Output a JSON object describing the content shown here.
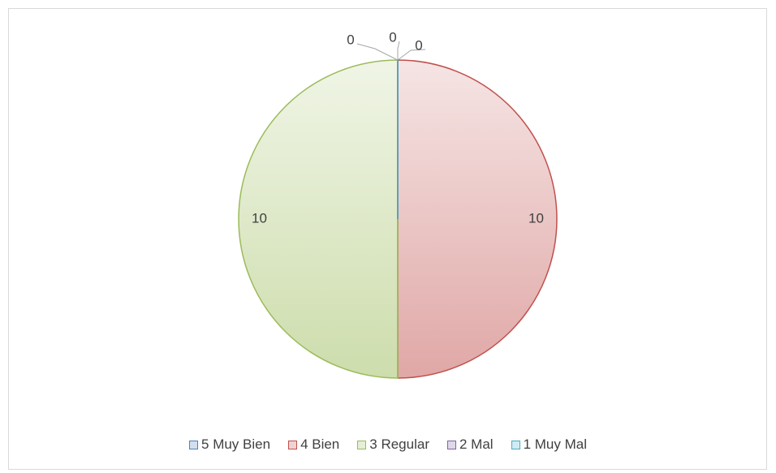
{
  "chart_data": {
    "type": "pie",
    "categories": [
      "5 Muy Bien",
      "4 Bien",
      "3 Regular",
      "2 Mal",
      "1 Muy Mal"
    ],
    "values": [
      0,
      10,
      10,
      0,
      0
    ],
    "colors": [
      "#4f81bd",
      "#c0504d",
      "#9bbb59",
      "#8064a2",
      "#4bacc6"
    ],
    "legend": "bottom"
  }
}
